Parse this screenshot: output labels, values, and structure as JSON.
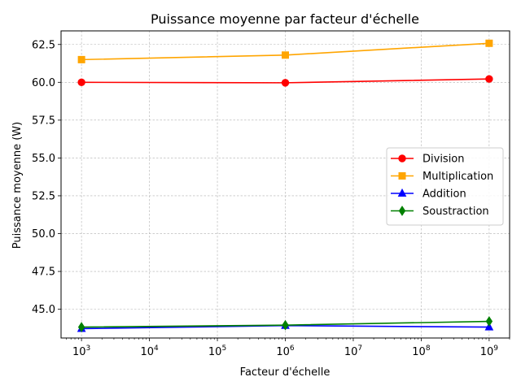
{
  "chart_data": {
    "type": "line",
    "title": "Puissance moyenne par facteur d'échelle",
    "xlabel": "Facteur d'échelle",
    "ylabel": "Puissance moyenne (W)",
    "xscale": "log",
    "xlim": [
      500,
      2000000000
    ],
    "ylim": [
      43.1,
      63.4
    ],
    "x": [
      1000,
      1000000,
      1000000000
    ],
    "xticks": [
      1000,
      10000,
      100000,
      1000000,
      10000000,
      100000000,
      1000000000
    ],
    "xtick_labels": [
      "10^3",
      "10^4",
      "10^5",
      "10^6",
      "10^7",
      "10^8",
      "10^9"
    ],
    "yticks": [
      45.0,
      47.5,
      50.0,
      52.5,
      55.0,
      57.5,
      60.0,
      62.5
    ],
    "ytick_labels": [
      "45.0",
      "47.5",
      "50.0",
      "52.5",
      "55.0",
      "57.5",
      "60.0",
      "62.5"
    ],
    "grid": true,
    "legend_position": "center-right",
    "series": [
      {
        "name": "Division",
        "values": [
          60.0,
          59.97,
          60.22
        ],
        "color": "#ff0000",
        "marker": "circle"
      },
      {
        "name": "Multiplication",
        "values": [
          61.5,
          61.8,
          62.58
        ],
        "color": "#ffa500",
        "marker": "square"
      },
      {
        "name": "Addition",
        "values": [
          43.72,
          43.92,
          43.82
        ],
        "color": "#0000ff",
        "marker": "triangle-up"
      },
      {
        "name": "Soustraction",
        "values": [
          43.82,
          43.95,
          44.2
        ],
        "color": "#008000",
        "marker": "diamond"
      }
    ]
  }
}
